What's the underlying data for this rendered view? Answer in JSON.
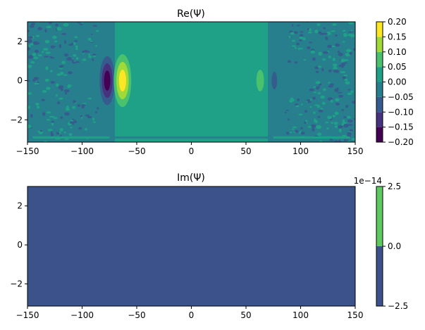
{
  "chart_data": [
    {
      "type": "heatmap",
      "subtype": "filled-contour",
      "title": "Re(Ψ)",
      "xlim": [
        -150,
        150
      ],
      "ylim": [
        -3.14,
        3.0
      ],
      "xticks": [
        -150,
        -100,
        -50,
        0,
        50,
        100,
        150
      ],
      "xtick_labels": [
        "−150",
        "−100",
        "−50",
        "0",
        "50",
        "100",
        "150"
      ],
      "yticks": [
        2,
        0,
        -2
      ],
      "ytick_labels": [
        "2",
        "0",
        "−2"
      ],
      "colorbar": {
        "levels": [
          -0.2,
          -0.15,
          -0.1,
          -0.05,
          0.0,
          0.05,
          0.1,
          0.15,
          0.2
        ],
        "tick_labels": [
          "−0.20",
          "−0.15",
          "−0.10",
          "−0.05",
          "0.00",
          "0.05",
          "0.10",
          "0.15",
          "0.20"
        ],
        "colors": [
          "#440154",
          "#46327e",
          "#365c8d",
          "#277f8e",
          "#1fa187",
          "#4ac16d",
          "#a0da39",
          "#fde725"
        ]
      },
      "background_band_value": 0.0,
      "regions": [
        {
          "x": [
            -150,
            -70
          ],
          "y": [
            -3.14,
            3.0
          ],
          "level_index": 3
        },
        {
          "x": [
            -70,
            70
          ],
          "y": [
            -3.14,
            3.0
          ],
          "level_index": 4
        },
        {
          "x": [
            70,
            150
          ],
          "y": [
            -3.14,
            3.0
          ],
          "level_index": 3
        }
      ],
      "blobs": [
        {
          "x": -77,
          "y": 0,
          "rx": 7,
          "ry": 1.25,
          "levels": [
            2,
            1,
            0
          ]
        },
        {
          "x": -63,
          "y": 0,
          "rx": 8,
          "ry": 1.35,
          "levels": [
            5,
            6,
            7
          ]
        },
        {
          "x": 63,
          "y": 0,
          "rx": 3.5,
          "ry": 0.55,
          "levels": [
            5
          ]
        },
        {
          "x": 76,
          "y": 0,
          "rx": 2.5,
          "ry": 0.45,
          "levels": [
            2
          ]
        }
      ]
    },
    {
      "type": "heatmap",
      "subtype": "filled-contour",
      "title": "Im(Ψ)",
      "xlim": [
        -150,
        150
      ],
      "ylim": [
        -3.14,
        3.0
      ],
      "xticks": [
        -150,
        -100,
        -50,
        0,
        50,
        100,
        150
      ],
      "xtick_labels": [
        "−150",
        "−100",
        "−50",
        "0",
        "50",
        "100",
        "150"
      ],
      "yticks": [
        2,
        0,
        -2
      ],
      "ytick_labels": [
        "2",
        "0",
        "−2"
      ],
      "colorbar": {
        "levels": [
          -2.5,
          0.0,
          2.5
        ],
        "tick_labels": [
          "−2.5",
          "0.0",
          "2.5"
        ],
        "offset_label": "1e−14",
        "colors": [
          "#3b528b",
          "#5ec962"
        ]
      },
      "fill_level_index": 0
    }
  ]
}
